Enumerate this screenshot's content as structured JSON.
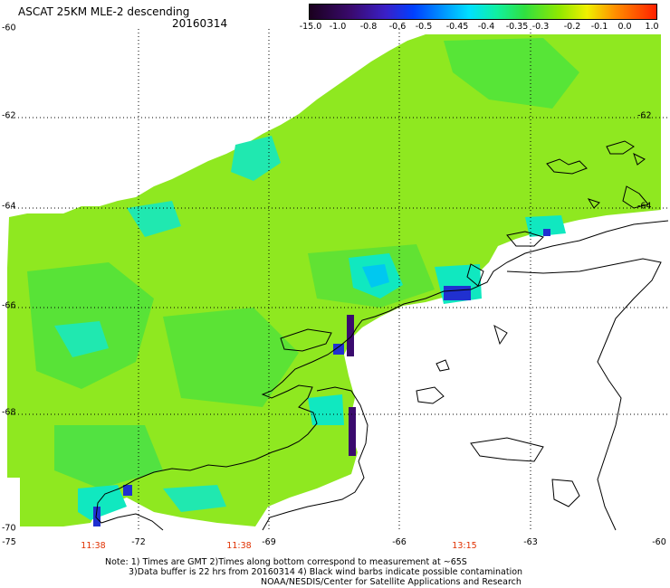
{
  "title": "ASCAT 25KM MLE-2 descending",
  "date": "20160314",
  "colorbar": {
    "labels": [
      "-15.0",
      "-1.0",
      "-0.8",
      "-0.6",
      "-0.5",
      "-0.45",
      "-0.4",
      "-0.35",
      "-0.3",
      "-0.2",
      "-0.1",
      "0.0",
      "1.0"
    ]
  },
  "lat_labels": [
    "-60",
    "-62",
    "-64",
    "-66",
    "-68",
    "-70"
  ],
  "lon_labels": [
    "-75",
    "-72",
    "-69",
    "-66",
    "-63",
    "-60"
  ],
  "time_labels": [
    "11:38",
    "11:38",
    "13:15"
  ],
  "notes": {
    "line1": "Note: 1) Times are GMT 2)Times along bottom correspond to measurement at ~65S",
    "line2": "3)Data buffer is 22 hrs from 20160314 4) Black wind barbs indicate possible contamination",
    "line3": "NOAA/NESDIS/Center for Satellite Applications and Research"
  },
  "colors": {
    "field_main": "#8fe820",
    "field_green": "#40e040",
    "field_cyan": "#10e8c0",
    "anomaly_blue": "#2030d0",
    "anomaly_dark": "#3a0a6e",
    "time_label": "#e03000"
  }
}
